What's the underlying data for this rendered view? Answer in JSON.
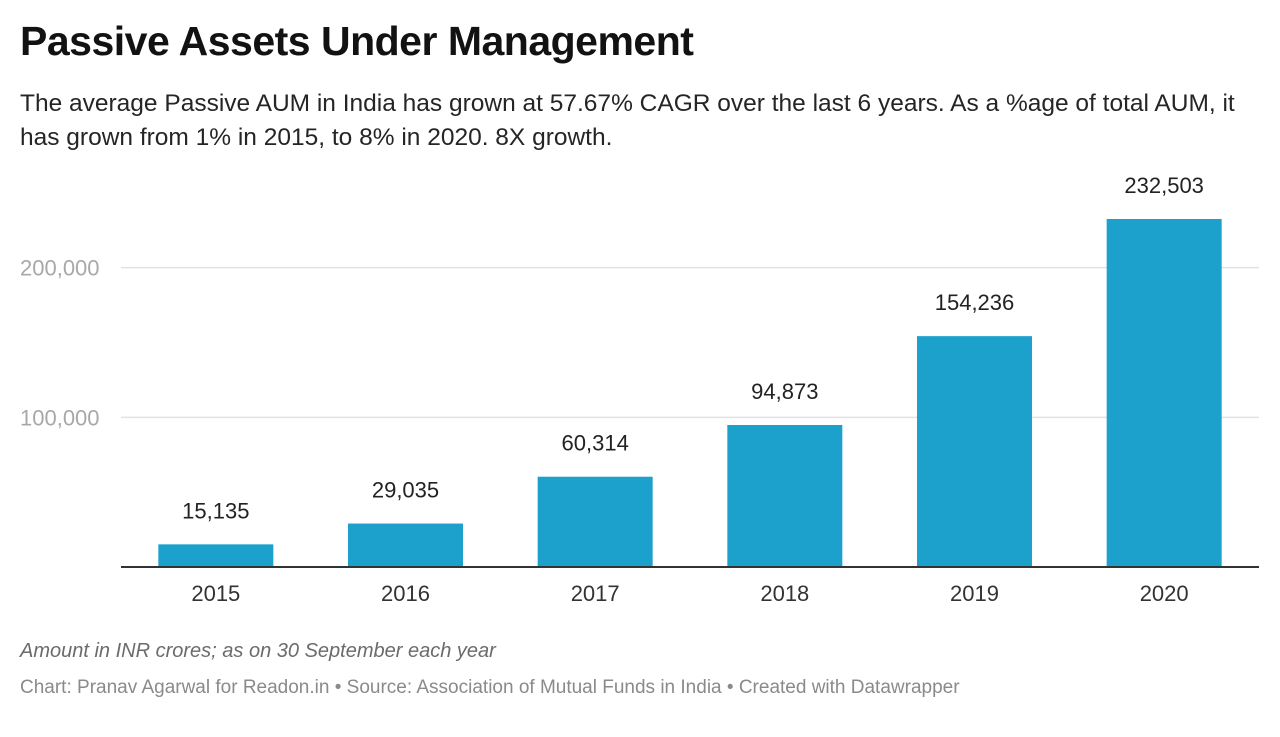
{
  "header": {
    "title": "Passive Assets Under Management",
    "subtitle": "The average Passive AUM in India has grown at 57.67% CAGR over the last 6 years. As a %age of total AUM, it has grown from 1% in 2015, to 8% in 2020. 8X growth."
  },
  "chart_data": {
    "type": "bar",
    "title": "Passive Assets Under Management",
    "categories": [
      "2015",
      "2016",
      "2017",
      "2018",
      "2019",
      "2020"
    ],
    "values": [
      15135,
      29035,
      60314,
      94873,
      154236,
      232503
    ],
    "value_labels": [
      "15,135",
      "29,035",
      "60,314",
      "94,873",
      "154,236",
      "232,503"
    ],
    "y_ticks": [
      100000,
      200000
    ],
    "y_tick_labels": [
      "100,000",
      "200,000"
    ],
    "ylim": [
      0,
      232503
    ],
    "xlabel": "",
    "ylabel": "",
    "bar_color": "#1ba1cc",
    "grid": true
  },
  "notes": {
    "caption": "Amount in INR crores; as on 30 September each year",
    "chart_credit": "Chart: Pranav Agarwal for Readon.in",
    "source": "Source: Association of Mutual Funds in India",
    "created_with": "Created with Datawrapper",
    "separator": "•"
  }
}
